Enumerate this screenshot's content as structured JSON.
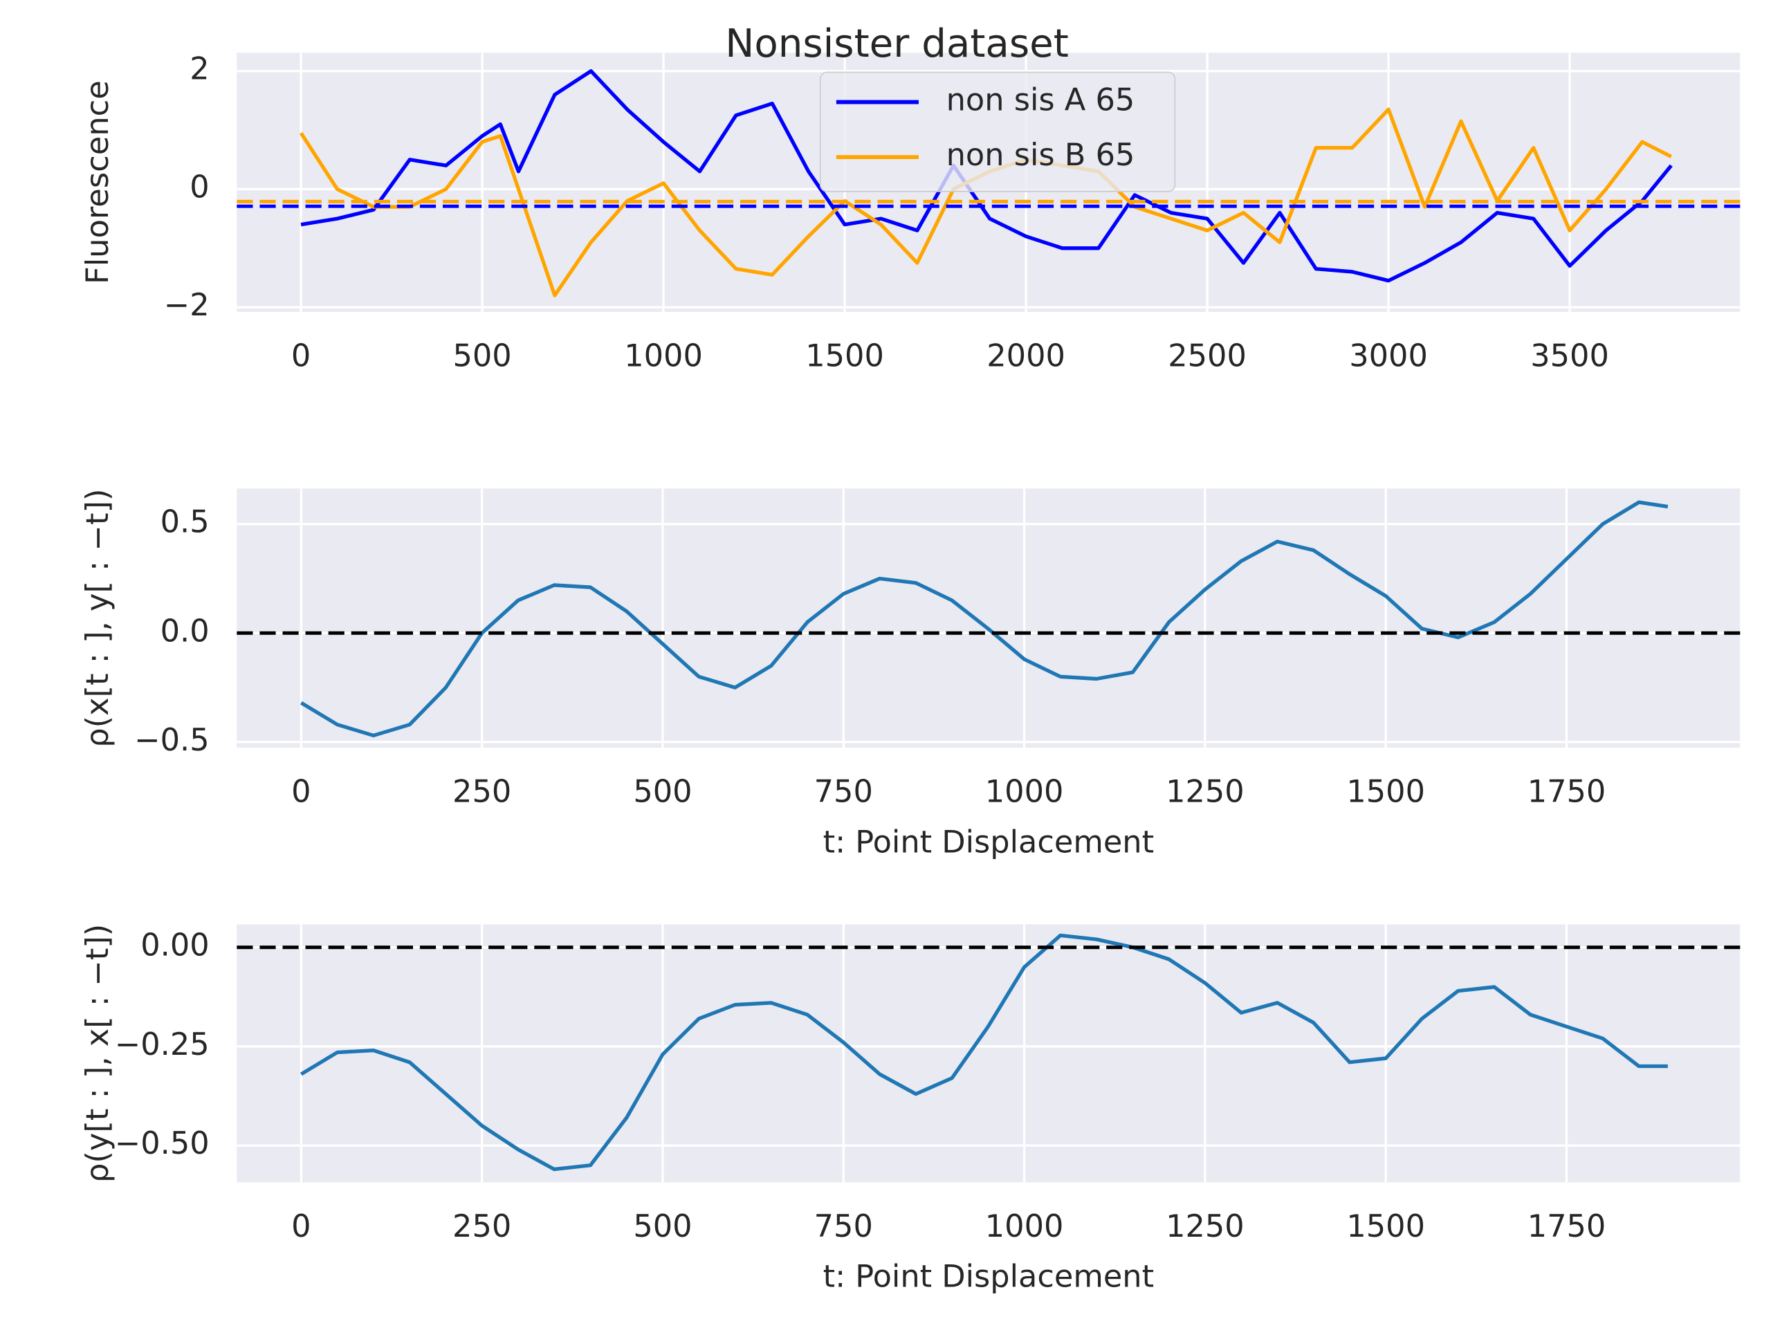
{
  "chart_data": [
    {
      "type": "line",
      "title": "Nonsister dataset",
      "ylabel": "Fluorescence",
      "x": [
        0,
        100,
        200,
        300,
        400,
        500,
        550,
        600,
        700,
        800,
        900,
        1000,
        1100,
        1200,
        1300,
        1400,
        1500,
        1600,
        1700,
        1800,
        1900,
        2000,
        2100,
        2200,
        2300,
        2400,
        2500,
        2600,
        2700,
        2800,
        2900,
        3000,
        3100,
        3200,
        3300,
        3400,
        3500,
        3600,
        3700,
        3780
      ],
      "series": [
        {
          "name": "non sis A 65",
          "color": "#0000ff",
          "values": [
            -0.6,
            -0.5,
            -0.35,
            0.5,
            0.4,
            0.9,
            1.1,
            0.3,
            1.6,
            2.0,
            1.35,
            0.8,
            0.3,
            1.25,
            1.45,
            0.3,
            -0.6,
            -0.5,
            -0.7,
            0.4,
            -0.5,
            -0.8,
            -1.0,
            -1.0,
            -0.1,
            -0.4,
            -0.5,
            -1.25,
            -0.4,
            -1.35,
            -1.4,
            -1.55,
            -1.25,
            -0.9,
            -0.4,
            -0.5,
            -1.3,
            -0.7,
            -0.2,
            0.4
          ]
        },
        {
          "name": "non sis B 65",
          "color": "#ffa500",
          "values": [
            0.95,
            0,
            -0.3,
            -0.3,
            0,
            0.8,
            0.9,
            0,
            -1.8,
            -0.9,
            -0.2,
            0.1,
            -0.7,
            -1.35,
            -1.45,
            -0.8,
            -0.2,
            -0.6,
            -1.25,
            0,
            0.3,
            0.5,
            0.4,
            0.3,
            -0.3,
            -0.5,
            -0.7,
            -0.4,
            -0.9,
            0.7,
            0.7,
            1.35,
            -0.3,
            1.15,
            -0.2,
            0.7,
            -0.7,
            0,
            0.8,
            0.55
          ]
        }
      ],
      "hlines": [
        {
          "value": -0.29,
          "color": "#0000ff"
        },
        {
          "value": -0.21,
          "color": "#ffa500"
        }
      ],
      "xlim": [
        -177,
        3970
      ],
      "xticks": [
        0,
        500,
        1000,
        1500,
        2000,
        2500,
        3000,
        3500
      ],
      "ylim": [
        -2.08,
        2.31
      ],
      "yticks": [
        {
          "value": -2,
          "label": "−2"
        },
        0,
        2
      ],
      "grid": true,
      "legend": "upper center"
    },
    {
      "type": "line",
      "xlabel": "t: Point Displacement",
      "ylabel": "ρ(x[t : ], y[ : −t])",
      "x": [
        0,
        50,
        100,
        150,
        200,
        250,
        300,
        350,
        400,
        450,
        500,
        550,
        600,
        650,
        700,
        750,
        800,
        850,
        900,
        950,
        1000,
        1050,
        1100,
        1150,
        1200,
        1250,
        1300,
        1350,
        1400,
        1450,
        1500,
        1550,
        1600,
        1650,
        1700,
        1750,
        1800,
        1850,
        1890
      ],
      "series": [
        {
          "color": "#1f77b4",
          "values": [
            -0.32,
            -0.42,
            -0.47,
            -0.42,
            -0.25,
            0.0,
            0.15,
            0.22,
            0.21,
            0.1,
            -0.05,
            -0.2,
            -0.25,
            -0.15,
            0.05,
            0.18,
            0.25,
            0.23,
            0.15,
            0.02,
            -0.12,
            -0.2,
            -0.21,
            -0.18,
            0.05,
            0.2,
            0.33,
            0.42,
            0.38,
            0.27,
            0.17,
            0.02,
            -0.02,
            0.05,
            0.18,
            0.34,
            0.5,
            0.6,
            0.58
          ]
        }
      ],
      "hlines": [
        {
          "value": 0,
          "color": "#000000"
        }
      ],
      "xlim": [
        -89,
        1990
      ],
      "xticks": [
        0,
        250,
        500,
        750,
        1000,
        1250,
        1500,
        1750
      ],
      "ylim": [
        -0.526,
        0.663
      ],
      "yticks": [
        {
          "value": -0.5,
          "label": "−0.5"
        },
        {
          "value": 0,
          "label": "0.0"
        },
        0.5
      ],
      "grid": true
    },
    {
      "type": "line",
      "xlabel": "t: Point Displacement",
      "ylabel": "ρ(y[t : ], x[ : −t])",
      "x": [
        0,
        50,
        100,
        150,
        200,
        250,
        300,
        350,
        400,
        450,
        500,
        550,
        600,
        650,
        700,
        750,
        800,
        850,
        900,
        950,
        1000,
        1050,
        1100,
        1150,
        1200,
        1250,
        1300,
        1350,
        1400,
        1450,
        1500,
        1550,
        1600,
        1650,
        1700,
        1750,
        1800,
        1850,
        1890
      ],
      "series": [
        {
          "color": "#1f77b4",
          "values": [
            -0.32,
            -0.265,
            -0.26,
            -0.29,
            -0.37,
            -0.45,
            -0.51,
            -0.56,
            -0.55,
            -0.43,
            -0.27,
            -0.18,
            -0.145,
            -0.14,
            -0.17,
            -0.24,
            -0.32,
            -0.37,
            -0.33,
            -0.2,
            -0.05,
            0.03,
            0.02,
            0.0,
            -0.03,
            -0.09,
            -0.165,
            -0.14,
            -0.19,
            -0.29,
            -0.28,
            -0.18,
            -0.11,
            -0.1,
            -0.17,
            -0.2,
            -0.23,
            -0.3,
            -0.3
          ]
        }
      ],
      "hlines": [
        {
          "value": 0,
          "color": "#000000"
        }
      ],
      "xlim": [
        -89,
        1990
      ],
      "xticks": [
        0,
        250,
        500,
        750,
        1000,
        1250,
        1500,
        1750
      ],
      "ylim": [
        -0.593,
        0.058
      ],
      "yticks": [
        {
          "value": -0.5,
          "label": "−0.50"
        },
        {
          "value": -0.25,
          "label": "−0.25"
        },
        {
          "value": 0,
          "label": "0.00"
        }
      ],
      "grid": true
    }
  ]
}
